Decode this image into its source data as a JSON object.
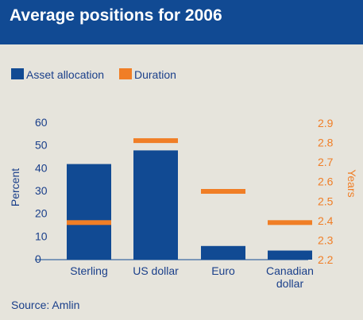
{
  "header": {
    "title": "Average positions for 2006"
  },
  "colors": {
    "header_bg": "#114a93",
    "bar": "#114a93",
    "marker": "#f07e26",
    "background": "#e6e4dc",
    "text": "#1a3f8a"
  },
  "legend": [
    {
      "label": "Asset allocation",
      "color": "#114a93"
    },
    {
      "label": "Duration",
      "color": "#f07e26"
    }
  ],
  "footer": {
    "source": "Source: Amlin"
  },
  "chart_data": {
    "type": "bar",
    "categories": [
      "Sterling",
      "US dollar",
      "Euro",
      "Canadian dollar"
    ],
    "category_lines": [
      [
        "Sterling"
      ],
      [
        "US dollar"
      ],
      [
        "Euro"
      ],
      [
        "Canadian",
        "dollar"
      ]
    ],
    "series": [
      {
        "name": "Asset allocation",
        "axis": "left",
        "values": [
          42,
          48,
          6,
          4
        ]
      },
      {
        "name": "Duration",
        "axis": "right",
        "values": [
          2.39,
          2.81,
          2.55,
          2.39
        ]
      }
    ],
    "ylabel": "Percent",
    "ylim": [
      0,
      60
    ],
    "yticks": [
      0,
      10,
      20,
      30,
      40,
      50,
      60
    ],
    "y2label": "Years",
    "y2lim": [
      2.2,
      2.9
    ],
    "y2ticks": [
      "2.2",
      "2.3",
      "2.4",
      "2.5",
      "2.6",
      "2.7",
      "2.8",
      "2.9"
    ],
    "grid": false,
    "legend_position": "top-left"
  }
}
